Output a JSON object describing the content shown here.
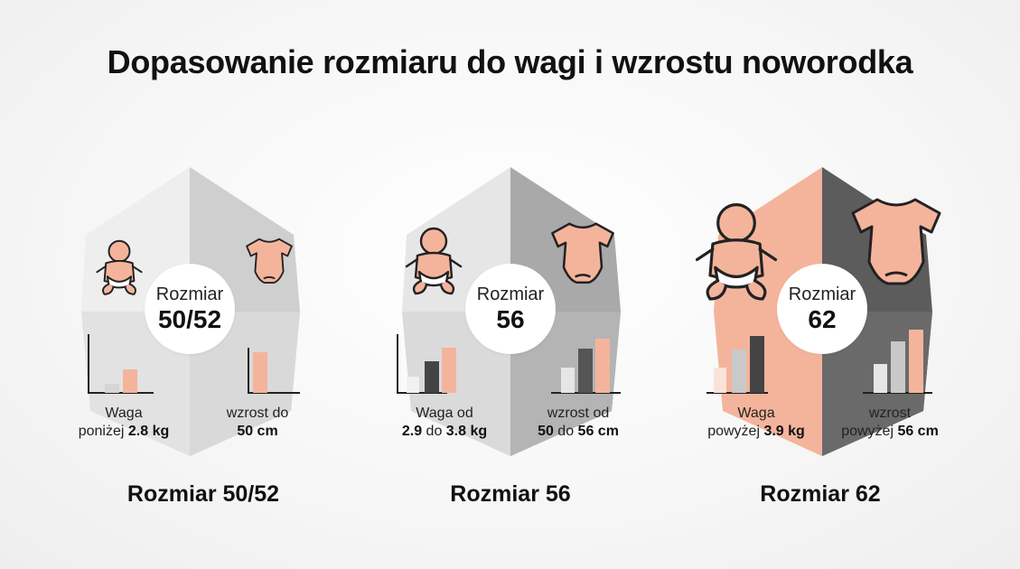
{
  "title": "Dopasowanie rozmiaru do wagi i wzrostu noworodka",
  "panels": [
    {
      "badge_label": "Rozmiar",
      "badge_value": "50/52",
      "weight_line1": "Waga",
      "weight_line2a": "poniżej ",
      "weight_line2b": "2.8 kg",
      "height_line1": "wzrost do",
      "height_line2": "50 cm",
      "size_label": "Rozmiar 50/52",
      "colors": {
        "left": "#eeeeee",
        "right": "#cfcfcf",
        "accent": "#f4b49c"
      }
    },
    {
      "badge_label": "Rozmiar",
      "badge_value": "56",
      "weight_line1": "Waga od",
      "weight_line2a": "2.9",
      "weight_line2b": " do ",
      "weight_line2c": "3.8 kg",
      "height_line1": "wzrost od",
      "height_line2a": "50",
      "height_line2b": " do ",
      "height_line2c": "56 cm",
      "size_label": "Rozmiar 56",
      "colors": {
        "left": "#e6e6e6",
        "right": "#a9a9a9",
        "accent": "#f4b49c"
      }
    },
    {
      "badge_label": "Rozmiar",
      "badge_value": "62",
      "weight_line1": "Waga",
      "weight_line2a": "powyżej ",
      "weight_line2b": "3.9 kg",
      "height_line1": "wzrost",
      "height_line2a": "powyżej ",
      "height_line2b": "56 cm",
      "size_label": "Rozmiar 62",
      "colors": {
        "left": "#f4b49c",
        "right": "#5c5c5c",
        "accent": "#f4b49c"
      }
    }
  ],
  "icons": [
    "baby-icon",
    "bodysuit-icon",
    "bar-chart-icon"
  ]
}
